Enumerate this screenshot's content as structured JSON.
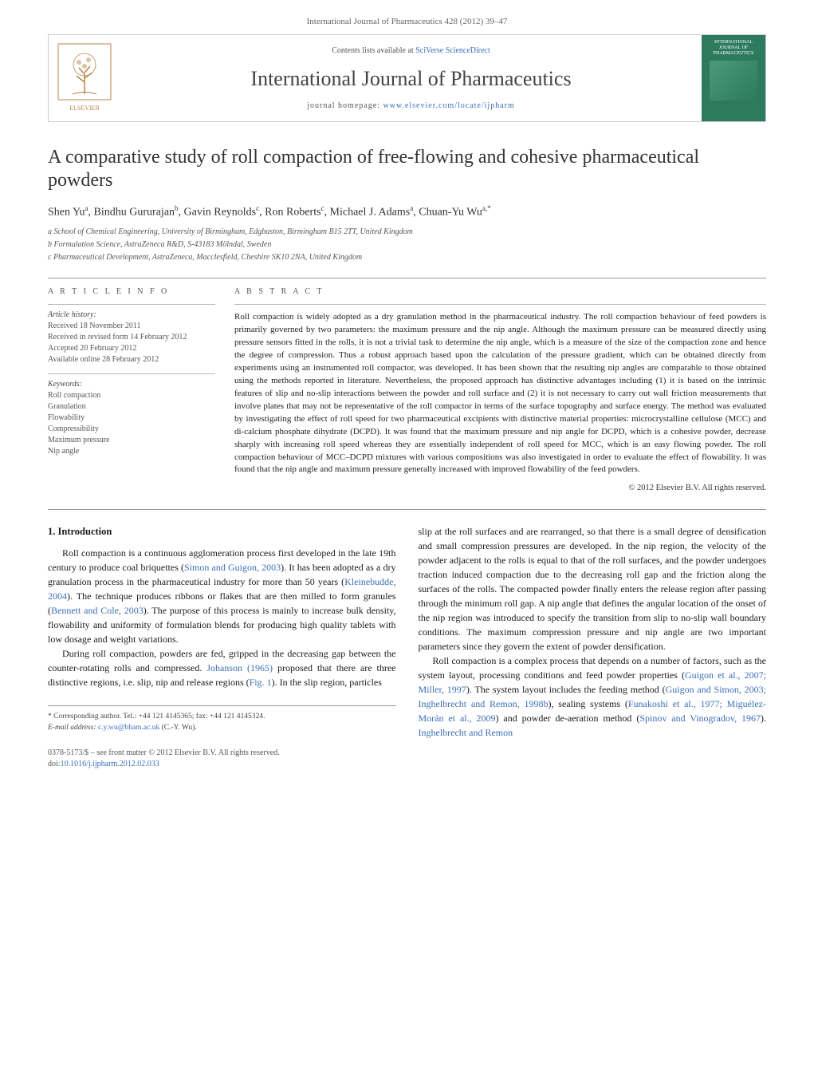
{
  "header": {
    "citation": "International Journal of Pharmaceutics 428 (2012) 39–47"
  },
  "banner": {
    "contents_prefix": "Contents lists available at ",
    "contents_link": "SciVerse ScienceDirect",
    "journal_title": "International Journal of Pharmaceutics",
    "homepage_prefix": "journal homepage: ",
    "homepage_link": "www.elsevier.com/locate/ijpharm",
    "publisher": "ELSEVIER",
    "cover_label": "INTERNATIONAL JOURNAL OF PHARMACEUTICS"
  },
  "article": {
    "title": "A comparative study of roll compaction of free-flowing and cohesive pharmaceutical powders",
    "authors_html": "Shen Yu<sup>a</sup>, Bindhu Gururajan<sup>b</sup>, Gavin Reynolds<sup>c</sup>, Ron Roberts<sup>c</sup>, Michael J. Adams<sup>a</sup>, Chuan-Yu Wu<sup>a,*</sup>",
    "affiliations": [
      "a School of Chemical Engineering, University of Birmingham, Edgbaston, Birmingham B15 2TT, United Kingdom",
      "b Formulation Science, AstraZeneca R&D, S-43183 Mölndal, Sweden",
      "c Pharmaceutical Development, AstraZeneca, Macclesfield, Cheshire SK10 2NA, United Kingdom"
    ]
  },
  "info": {
    "heading": "A R T I C L E   I N F O",
    "history_label": "Article history:",
    "history": [
      "Received 18 November 2011",
      "Received in revised form 14 February 2012",
      "Accepted 20 February 2012",
      "Available online 28 February 2012"
    ],
    "keywords_label": "Keywords:",
    "keywords": [
      "Roll compaction",
      "Granulation",
      "Flowability",
      "Compressibility",
      "Maximum pressure",
      "Nip angle"
    ]
  },
  "abstract": {
    "heading": "A B S T R A C T",
    "text": "Roll compaction is widely adopted as a dry granulation method in the pharmaceutical industry. The roll compaction behaviour of feed powders is primarily governed by two parameters: the maximum pressure and the nip angle. Although the maximum pressure can be measured directly using pressure sensors fitted in the rolls, it is not a trivial task to determine the nip angle, which is a measure of the size of the compaction zone and hence the degree of compression. Thus a robust approach based upon the calculation of the pressure gradient, which can be obtained directly from experiments using an instrumented roll compactor, was developed. It has been shown that the resulting nip angles are comparable to those obtained using the methods reported in literature. Nevertheless, the proposed approach has distinctive advantages including (1) it is based on the intrinsic features of slip and no-slip interactions between the powder and roll surface and (2) it is not necessary to carry out wall friction measurements that involve plates that may not be representative of the roll compactor in terms of the surface topography and surface energy. The method was evaluated by investigating the effect of roll speed for two pharmaceutical excipients with distinctive material properties: microcrystalline cellulose (MCC) and di-calcium phosphate dihydrate (DCPD). It was found that the maximum pressure and nip angle for DCPD, which is a cohesive powder, decrease sharply with increasing roll speed whereas they are essentially independent of roll speed for MCC, which is an easy flowing powder. The roll compaction behaviour of MCC–DCPD mixtures with various compositions was also investigated in order to evaluate the effect of flowability. It was found that the nip angle and maximum pressure generally increased with improved flowability of the feed powders.",
    "copyright": "© 2012 Elsevier B.V. All rights reserved."
  },
  "body": {
    "section_number": "1.",
    "section_title": "Introduction",
    "p1a": "Roll compaction is a continuous agglomeration process first developed in the late 19th century to produce coal briquettes (",
    "p1_cite1": "Simon and Guigon, 2003",
    "p1b": "). It has been adopted as a dry granulation process in the pharmaceutical industry for more than 50 years (",
    "p1_cite2": "Kleinebudde, 2004",
    "p1c": "). The technique produces ribbons or flakes that are then milled to form granules (",
    "p1_cite3": "Bennett and Cole, 2003",
    "p1d": "). The purpose of this process is mainly to increase bulk density, flowability and uniformity of formulation blends for producing high quality tablets with low dosage and weight variations.",
    "p2a": "During roll compaction, powders are fed, gripped in the decreasing gap between the counter-rotating rolls and compressed. ",
    "p2_cite1": "Johanson (1965)",
    "p2b": " proposed that there are three distinctive regions, i.e. slip, nip and release regions (",
    "p2_cite2": "Fig. 1",
    "p2c": "). In the slip region, particles",
    "p3": "slip at the roll surfaces and are rearranged, so that there is a small degree of densification and small compression pressures are developed. In the nip region, the velocity of the powder adjacent to the rolls is equal to that of the roll surfaces, and the powder undergoes traction induced compaction due to the decreasing roll gap and the friction along the surfaces of the rolls. The compacted powder finally enters the release region after passing through the minimum roll gap. A nip angle that defines the angular location of the onset of the nip region was introduced to specify the transition from slip to no-slip wall boundary conditions. The maximum compression pressure and nip angle are two important parameters since they govern the extent of powder densification.",
    "p4a": "Roll compaction is a complex process that depends on a number of factors, such as the system layout, processing conditions and feed powder properties (",
    "p4_cite1": "Guigon et al., 2007; Miller, 1997",
    "p4b": "). The system layout includes the feeding method (",
    "p4_cite2": "Guigon and Simon, 2003; Inghelbrecht and Remon, 1998b",
    "p4c": "), sealing systems (",
    "p4_cite3": "Funakoshi et al., 1977; Miguélez-Morán et al., 2009",
    "p4d": ") and powder de-aeration method (",
    "p4_cite4": "Spinov and Vinogradov, 1967",
    "p4e": "). ",
    "p4_cite5": "Inghelbrecht and Remon"
  },
  "footnote": {
    "corr_label": "* Corresponding author. Tel.: +44 121 4145365; fax: +44 121 4145324.",
    "email_label": "E-mail address: ",
    "email": "c.y.wu@bham.ac.uk",
    "email_suffix": " (C.-Y. Wu)."
  },
  "doi": {
    "line1": "0378-5173/$ – see front matter © 2012 Elsevier B.V. All rights reserved.",
    "line2_prefix": "doi:",
    "line2_link": "10.1016/j.ijpharm.2012.02.033"
  },
  "colors": {
    "link": "#3a6fb7",
    "text": "#1a1a1a",
    "muted": "#555555",
    "border": "#999999",
    "cover_bg": "#2d7a5f"
  }
}
